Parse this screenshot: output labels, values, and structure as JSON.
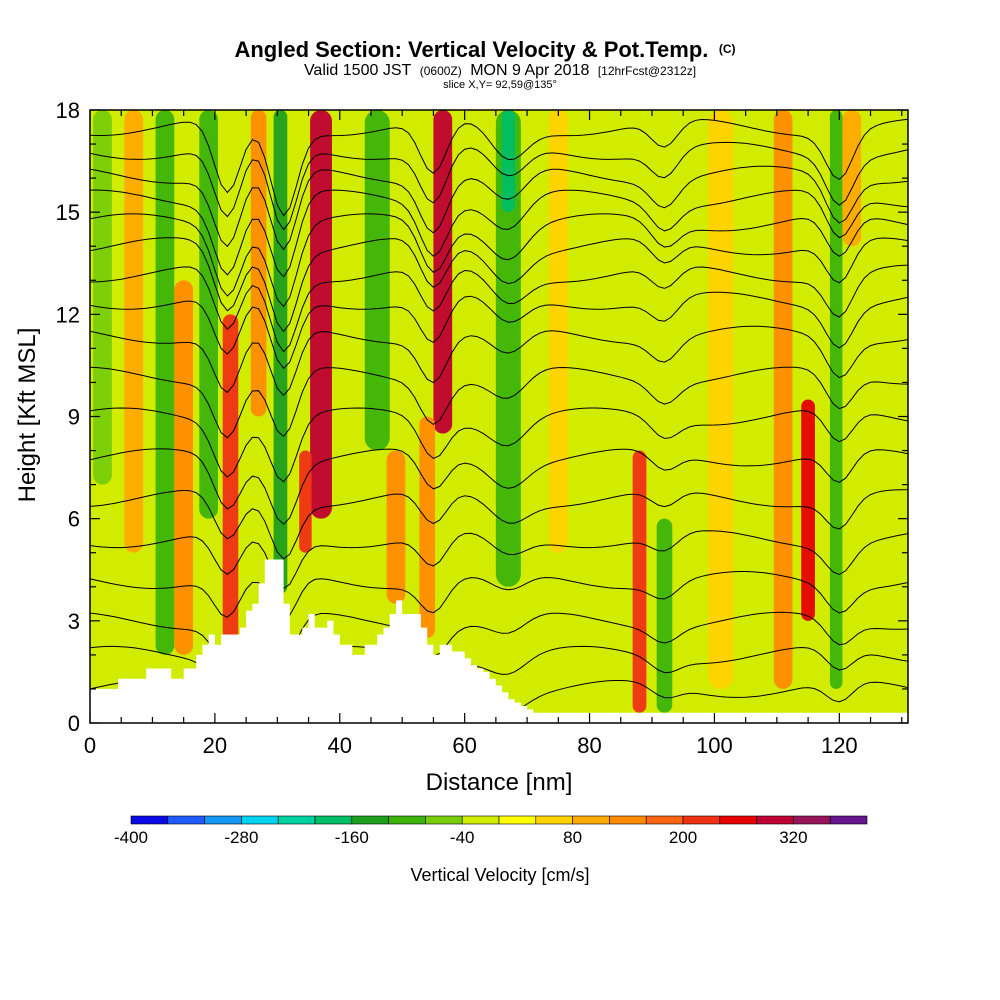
{
  "header": {
    "title": "Angled Section: Vertical Velocity & Pot.Temp.",
    "title_suffix": "(C)",
    "valid_prefix": "Valid 1500 JST",
    "valid_zulu": "(0600Z)",
    "valid_date": "MON 9 Apr 2018",
    "forecast": "[12hrFcst@2312z]",
    "slice": "slice X,Y= 92,59@135°"
  },
  "chart_data": {
    "type": "heatmap",
    "xlabel": "Distance [nm]",
    "ylabel": "Height [Kft MSL]",
    "xlim": [
      0,
      131
    ],
    "ylim": [
      0,
      18
    ],
    "x_ticks": [
      0,
      20,
      40,
      60,
      80,
      100,
      120
    ],
    "y_ticks": [
      0,
      3,
      6,
      9,
      12,
      15,
      18
    ],
    "colorbar": {
      "title": "Vertical Velocity [cm/s]",
      "tick_labels": [
        "-400",
        "-280",
        "-160",
        "-40",
        "80",
        "200",
        "320"
      ],
      "tick_values": [
        -400,
        -280,
        -160,
        -40,
        80,
        200,
        320
      ],
      "levels": [
        -400,
        -360,
        -320,
        -280,
        -240,
        -200,
        -160,
        -120,
        -80,
        -40,
        0,
        40,
        80,
        120,
        160,
        200,
        240,
        280,
        320,
        360,
        400
      ],
      "colors": [
        "#0a0ae6",
        "#1e5aff",
        "#1496f5",
        "#00d2f0",
        "#00d2a0",
        "#00be64",
        "#1ea01e",
        "#3cb40a",
        "#78cd0a",
        "#d2ec00",
        "#ffff00",
        "#ffd200",
        "#ffaa00",
        "#ff8c00",
        "#ff6414",
        "#f03214",
        "#e60000",
        "#be0032",
        "#96145a",
        "#64148c"
      ]
    },
    "velocity_features": [
      {
        "x": 2,
        "w": 3,
        "top": 18,
        "bottom": 7,
        "value": -80
      },
      {
        "x": 7,
        "w": 3,
        "top": 18,
        "bottom": 5,
        "value": 80
      },
      {
        "x": 12,
        "w": 3,
        "top": 18,
        "bottom": 2,
        "value": -120
      },
      {
        "x": 15,
        "w": 3,
        "top": 13,
        "bottom": 2,
        "value": 120
      },
      {
        "x": 19,
        "w": 3,
        "top": 18,
        "bottom": 6,
        "value": -120
      },
      {
        "x": 22.5,
        "w": 2.5,
        "top": 12,
        "bottom": 2.2,
        "value": 200
      },
      {
        "x": 27,
        "w": 2.5,
        "top": 18,
        "bottom": 9,
        "value": 120
      },
      {
        "x": 30.5,
        "w": 2.2,
        "top": 18,
        "bottom": 3.8,
        "value": -160
      },
      {
        "x": 37,
        "w": 3.5,
        "top": 18,
        "bottom": 6,
        "value": 280
      },
      {
        "x": 34.5,
        "w": 2,
        "top": 8,
        "bottom": 5,
        "value": 200
      },
      {
        "x": 46,
        "w": 4,
        "top": 18,
        "bottom": 8,
        "value": -120
      },
      {
        "x": 49,
        "w": 3,
        "top": 8,
        "bottom": 3.5,
        "value": 120
      },
      {
        "x": 56.5,
        "w": 3,
        "top": 18,
        "bottom": 8.5,
        "value": 280
      },
      {
        "x": 54,
        "w": 2.5,
        "top": 9,
        "bottom": 2.5,
        "value": 120
      },
      {
        "x": 62,
        "w": 3.5,
        "top": 18,
        "bottom": 3,
        "value": -40
      },
      {
        "x": 67,
        "w": 4,
        "top": 18,
        "bottom": 4,
        "value": -120
      },
      {
        "x": 67,
        "w": 2.2,
        "top": 18,
        "bottom": 15,
        "value": -200
      },
      {
        "x": 75,
        "w": 3,
        "top": 18,
        "bottom": 5,
        "value": 40
      },
      {
        "x": 81,
        "w": 4,
        "top": 18,
        "bottom": 1,
        "value": -40
      },
      {
        "x": 88,
        "w": 2.2,
        "top": 8,
        "bottom": 0.3,
        "value": 200
      },
      {
        "x": 92,
        "w": 2.5,
        "top": 6,
        "bottom": 0.3,
        "value": -120
      },
      {
        "x": 101,
        "w": 4,
        "top": 18,
        "bottom": 1,
        "value": 40
      },
      {
        "x": 106,
        "w": 3,
        "top": 18,
        "bottom": 2,
        "value": -40
      },
      {
        "x": 111,
        "w": 3,
        "top": 18,
        "bottom": 1,
        "value": 120
      },
      {
        "x": 115,
        "w": 2.2,
        "top": 9.5,
        "bottom": 3,
        "value": 240
      },
      {
        "x": 119.5,
        "w": 2,
        "top": 18,
        "bottom": 1,
        "value": -120
      },
      {
        "x": 122,
        "w": 3,
        "top": 18,
        "bottom": 14,
        "value": 80
      },
      {
        "x": 127,
        "w": 4,
        "top": 18,
        "bottom": 1,
        "value": -40
      }
    ],
    "terrain": {
      "x": [
        0,
        4.5,
        4.5,
        9,
        9,
        13,
        13,
        15,
        15,
        17,
        17,
        18,
        18,
        19,
        19,
        20,
        20,
        21,
        21,
        24,
        24,
        25,
        25,
        26,
        26,
        27,
        27,
        28,
        28,
        31,
        31,
        32,
        32,
        34,
        34,
        35,
        35,
        36,
        36,
        38,
        38,
        39,
        39,
        40,
        40,
        42,
        42,
        44,
        44,
        46,
        46,
        47,
        47,
        48,
        48,
        49,
        49,
        50,
        50,
        53,
        53,
        54,
        54,
        55,
        55,
        56,
        56,
        58,
        58,
        60,
        60,
        61,
        61,
        62,
        62,
        63,
        63,
        64,
        64,
        65,
        65,
        66,
        66,
        67,
        67,
        68,
        68,
        69,
        69,
        70,
        70,
        71,
        71,
        131
      ],
      "y": [
        1,
        1,
        1.3,
        1.3,
        1.6,
        1.6,
        1.3,
        1.3,
        1.6,
        1.6,
        2,
        2,
        2.3,
        2.3,
        2.6,
        2.6,
        2.3,
        2.3,
        2.6,
        2.6,
        2.8,
        2.8,
        3.3,
        3.3,
        3.5,
        3.5,
        4.1,
        4.1,
        4.8,
        4.8,
        3.5,
        3.5,
        2.6,
        2.6,
        2.8,
        2.8,
        3.2,
        3.2,
        2.8,
        2.8,
        3,
        3,
        2.6,
        2.6,
        2.3,
        2.3,
        2,
        2,
        2.3,
        2.3,
        2.6,
        2.6,
        2.8,
        2.8,
        3.2,
        3.2,
        3.6,
        3.6,
        3.2,
        3.2,
        2.8,
        2.8,
        2.3,
        2.3,
        2,
        2,
        2.3,
        2.3,
        2.1,
        2.1,
        1.9,
        1.9,
        1.7,
        1.7,
        1.6,
        1.6,
        1.5,
        1.5,
        1.3,
        1.3,
        1.1,
        1.1,
        0.9,
        0.9,
        0.7,
        0.7,
        0.6,
        0.6,
        0.5,
        0.5,
        0.4,
        0.4,
        0.3,
        0.3
      ]
    },
    "isentropes": {
      "base_heights": [
        1.0,
        2.0,
        3.0,
        4.2,
        5.4,
        6.6,
        7.8,
        9.0,
        10.2,
        11.4,
        12.4,
        13.2,
        14.0,
        14.7,
        15.4,
        16.1,
        16.8,
        17.5
      ],
      "dip_centers": [
        22,
        31,
        55,
        67,
        92,
        120
      ],
      "dip_depths": [
        2.2,
        2.6,
        1.6,
        1.0,
        0.8,
        1.4
      ],
      "dip_widths": [
        3,
        3,
        3,
        4,
        3,
        3
      ]
    }
  }
}
